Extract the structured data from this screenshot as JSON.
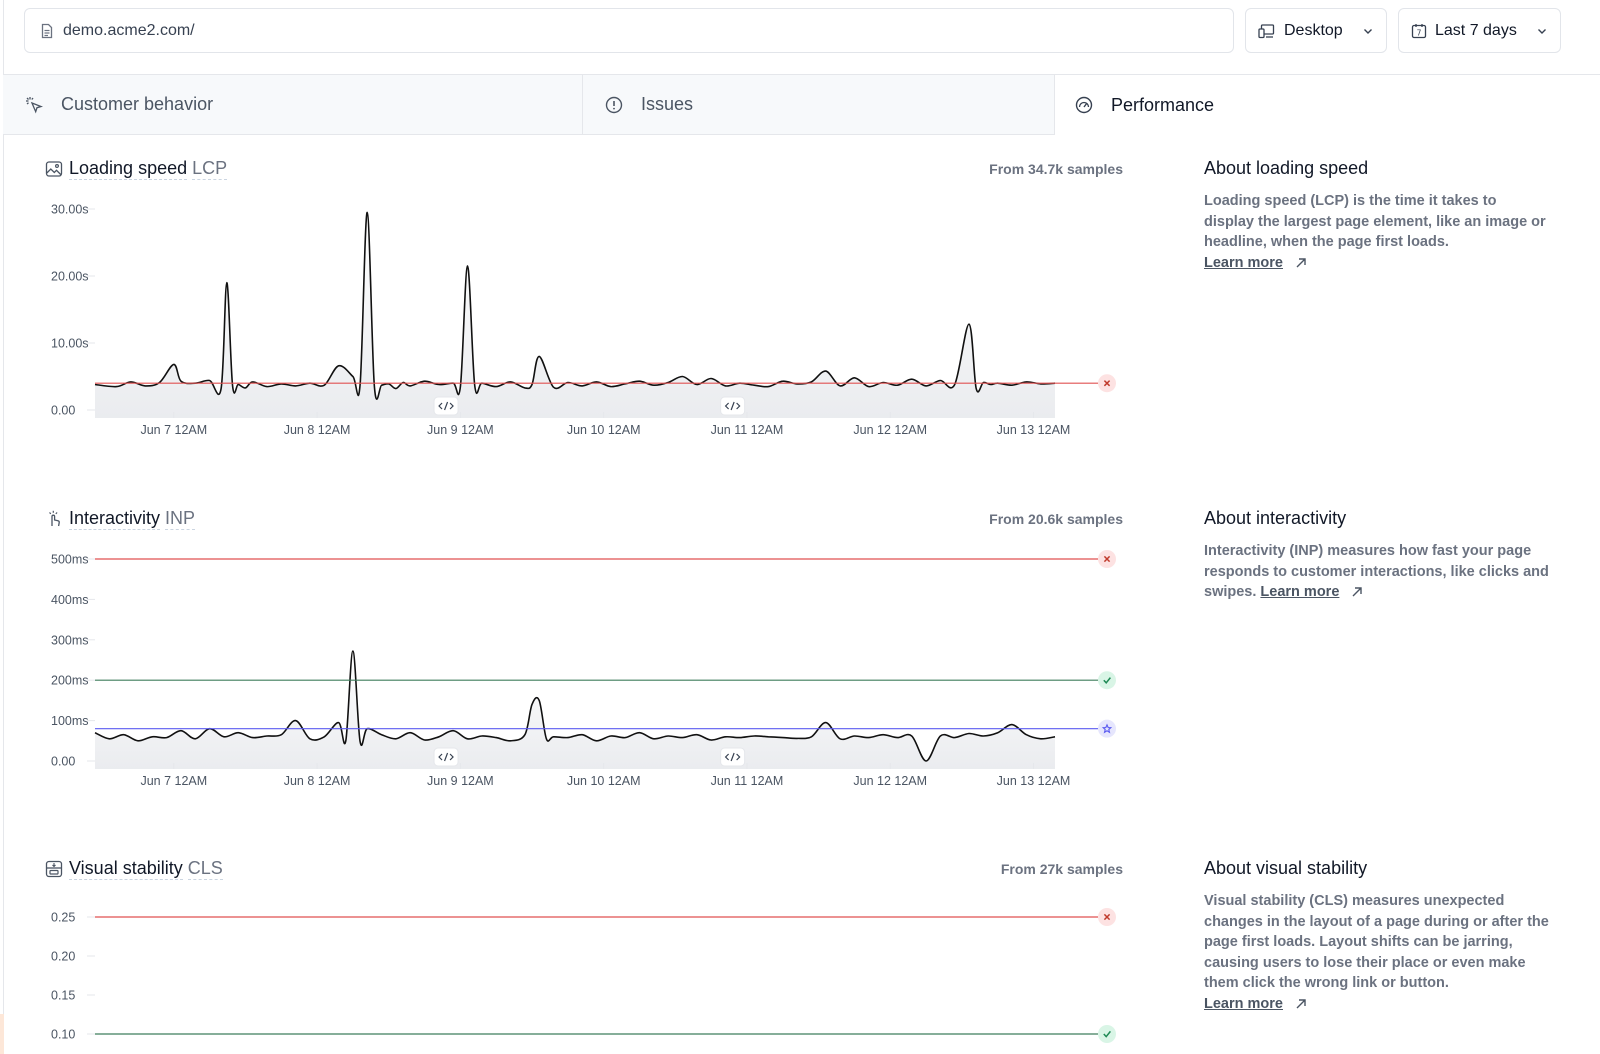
{
  "topbar": {
    "url": "demo.acme2.com/",
    "device": "Desktop",
    "range": "Last 7 days"
  },
  "tabs": [
    {
      "label": "Customer behavior"
    },
    {
      "label": "Issues"
    },
    {
      "label": "Performance"
    }
  ],
  "colors": {
    "poor": "#e05252",
    "good": "#3f7d5c",
    "target": "#5b5bf0",
    "series": "#111111"
  },
  "metrics": [
    {
      "title": "Loading speed",
      "abbr": "LCP",
      "samples": "From 34.7k samples",
      "about_title": "About loading speed",
      "about_text": "Loading speed (LCP) is the time it takes to display the largest page element, like an image or headline, when the page first loads.",
      "learn_more": "Learn more"
    },
    {
      "title": "Interactivity",
      "abbr": "INP",
      "samples": "From 20.6k samples",
      "about_title": "About interactivity",
      "about_text": "Interactivity (INP) measures how fast your page responds to customer interactions, like clicks and swipes.",
      "learn_more": "Learn more"
    },
    {
      "title": "Visual stability",
      "abbr": "CLS",
      "samples": "From 27k samples",
      "about_title": "About visual stability",
      "about_text": "Visual stability (CLS) measures unexpected changes in the layout of a page during or after the page first loads. Layout shifts can be jarring, causing users to lose their place or even make them click the wrong link or button.",
      "learn_more": "Learn more"
    }
  ],
  "chart_data": [
    {
      "type": "line",
      "title": "Loading speed LCP",
      "x_ticks": [
        "Jun 7 12AM",
        "Jun 8 12AM",
        "Jun 9 12AM",
        "Jun 10 12AM",
        "Jun 11 12AM",
        "Jun 12 12AM",
        "Jun 13 12AM"
      ],
      "y_ticks": [
        "0.00",
        "10.00s",
        "20.00s",
        "30.00s"
      ],
      "ylim": [
        0,
        30
      ],
      "xlim_days": [
        0,
        7
      ],
      "thresholds": [
        {
          "value": 4,
          "status": "poor"
        }
      ],
      "deploy_markers_x": [
        2.45,
        4.45
      ],
      "series": [
        {
          "x": [
            0,
            0.15,
            0.25,
            0.35,
            0.45,
            0.55,
            0.6,
            0.7,
            0.8,
            0.88,
            0.92,
            0.96,
            1.0,
            1.05,
            1.1,
            1.2,
            1.3,
            1.4,
            1.5,
            1.6,
            1.7,
            1.8,
            1.85,
            1.9,
            1.95,
            2.0,
            2.05,
            2.1,
            2.15,
            2.2,
            2.3,
            2.4,
            2.5,
            2.55,
            2.6,
            2.65,
            2.7,
            2.8,
            2.9,
            3.0,
            3.05,
            3.1,
            3.2,
            3.3,
            3.4,
            3.5,
            3.6,
            3.7,
            3.8,
            3.9,
            4.0,
            4.1,
            4.2,
            4.3,
            4.4,
            4.5,
            4.6,
            4.7,
            4.8,
            4.9,
            5.0,
            5.1,
            5.2,
            5.3,
            5.4,
            5.5,
            5.6,
            5.7,
            5.8,
            5.9,
            6.0,
            6.1,
            6.15,
            6.2,
            6.25,
            6.3,
            6.4,
            6.5,
            6.6,
            6.7
          ],
          "y": [
            3.8,
            3.5,
            4.2,
            3.6,
            4.1,
            6.8,
            4.3,
            4.0,
            4.4,
            3.2,
            19.0,
            3.6,
            3.8,
            3.3,
            4.2,
            3.5,
            3.9,
            3.6,
            4.0,
            3.7,
            6.6,
            5.0,
            3.8,
            29.5,
            3.5,
            3.7,
            3.9,
            3.2,
            4.1,
            3.6,
            4.3,
            3.8,
            4.0,
            3.5,
            21.5,
            3.7,
            4.0,
            3.5,
            4.2,
            3.3,
            3.8,
            8.0,
            3.4,
            4.1,
            3.6,
            4.2,
            3.5,
            3.9,
            4.3,
            3.7,
            4.1,
            5.0,
            3.8,
            4.7,
            3.6,
            4.0,
            3.7,
            3.5,
            4.3,
            3.9,
            4.2,
            5.8,
            3.6,
            4.8,
            3.5,
            4.1,
            3.7,
            4.6,
            3.6,
            4.4,
            3.8,
            12.8,
            3.2,
            4.1,
            3.8,
            4.0,
            3.7,
            4.2,
            3.9,
            4.0
          ]
        }
      ]
    },
    {
      "type": "line",
      "title": "Interactivity INP",
      "x_ticks": [
        "Jun 7 12AM",
        "Jun 8 12AM",
        "Jun 9 12AM",
        "Jun 10 12AM",
        "Jun 11 12AM",
        "Jun 12 12AM",
        "Jun 13 12AM"
      ],
      "y_ticks": [
        "0.00",
        "100ms",
        "200ms",
        "300ms",
        "400ms",
        "500ms"
      ],
      "ylim": [
        0,
        500
      ],
      "xlim_days": [
        0,
        7
      ],
      "thresholds": [
        {
          "value": 500,
          "status": "poor"
        },
        {
          "value": 200,
          "status": "good"
        },
        {
          "value": 80,
          "status": "target"
        }
      ],
      "deploy_markers_x": [
        2.45,
        4.45
      ],
      "series": [
        {
          "x": [
            0,
            0.1,
            0.2,
            0.3,
            0.4,
            0.5,
            0.6,
            0.7,
            0.8,
            0.9,
            1.0,
            1.1,
            1.2,
            1.3,
            1.4,
            1.5,
            1.6,
            1.7,
            1.75,
            1.8,
            1.85,
            1.9,
            2.0,
            2.1,
            2.2,
            2.3,
            2.4,
            2.5,
            2.6,
            2.7,
            2.8,
            2.9,
            3.0,
            3.05,
            3.1,
            3.15,
            3.2,
            3.3,
            3.4,
            3.5,
            3.6,
            3.7,
            3.8,
            3.9,
            4.0,
            4.1,
            4.2,
            4.3,
            4.4,
            4.5,
            4.6,
            4.7,
            4.8,
            4.9,
            5.0,
            5.1,
            5.2,
            5.3,
            5.4,
            5.5,
            5.6,
            5.7,
            5.8,
            5.9,
            6.0,
            6.1,
            6.2,
            6.3,
            6.4,
            6.5,
            6.6,
            6.7
          ],
          "y": [
            70,
            55,
            65,
            50,
            60,
            58,
            75,
            55,
            80,
            60,
            70,
            58,
            62,
            65,
            100,
            55,
            60,
            95,
            50,
            272,
            48,
            80,
            65,
            55,
            70,
            52,
            60,
            75,
            55,
            62,
            58,
            50,
            65,
            140,
            150,
            55,
            60,
            58,
            65,
            50,
            62,
            58,
            70,
            55,
            62,
            58,
            65,
            52,
            60,
            58,
            62,
            60,
            58,
            56,
            60,
            95,
            55,
            62,
            58,
            65,
            58,
            62,
            0,
            62,
            58,
            68,
            62,
            70,
            90,
            65,
            55,
            60
          ]
        }
      ]
    },
    {
      "type": "line",
      "title": "Visual stability CLS",
      "x_ticks": [],
      "y_ticks": [
        "0.10",
        "0.15",
        "0.20",
        "0.25"
      ],
      "ylim": [
        0.1,
        0.25
      ],
      "thresholds": [
        {
          "value": 0.25,
          "status": "poor"
        },
        {
          "value": 0.1,
          "status": "good"
        }
      ],
      "series": []
    }
  ]
}
